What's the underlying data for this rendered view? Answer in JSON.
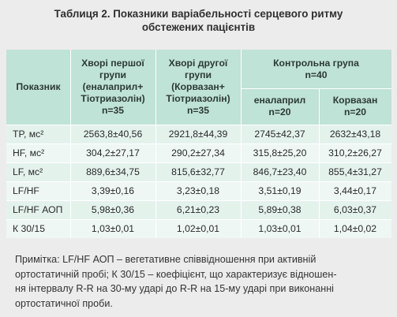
{
  "title": {
    "line1": "Таблиця 2. Показники варіабельності серцевого ритму",
    "line2": "обстежених пацієнтів"
  },
  "table": {
    "header": {
      "indicator": "Показник",
      "group1": [
        "Хворі першої",
        "групи",
        "(еналаприл+",
        "Тіотриазолін)",
        "n=35"
      ],
      "group2": [
        "Хворі другої",
        "групи",
        "(Корвазан+",
        "Тіотриазолін)",
        "n=35"
      ],
      "control": [
        "Контрольна група",
        "n=40"
      ],
      "control_enalapril": [
        "еналаприл",
        "n=20"
      ],
      "control_korvazan": [
        "Корвазан",
        "n=20"
      ]
    },
    "rows": [
      {
        "label": "TP, мс²",
        "g1": "2563,8±40,56",
        "g2": "2921,8±44,39",
        "c1": "2745±42,37",
        "c2": "2632±43,18"
      },
      {
        "label": "HF, мс²",
        "g1": "304,2±27,17",
        "g2": "290,2±27,34",
        "c1": "315,8±25,20",
        "c2": "310,2±26,27"
      },
      {
        "label": "LF, мс²",
        "g1": "889,6±34,75",
        "g2": "815,6±32,77",
        "c1": "846,7±23,40",
        "c2": "855,4±31,27"
      },
      {
        "label": "LF/HF",
        "g1": "3,39±0,16",
        "g2": "3,23±0,18",
        "c1": "3,51±0,19",
        "c2": "3,44±0,17"
      },
      {
        "label": "LF/HF АОП",
        "g1": "5,98±0,36",
        "g2": "6,21±0,23",
        "c1": "5,89±0,38",
        "c2": "6,03±0,37"
      },
      {
        "label": "К 30/15",
        "g1": "1,03±0,01",
        "g2": "1,02±0,01",
        "c1": "1,03±0,01",
        "c2": "1,04±0,02"
      }
    ]
  },
  "note": [
    "Примітка: LF/HF АОП – вегетативне співвідношення при активній",
    "ортостатичній пробі; К 30/15 – коефіцієнт, що характеризує відношен-",
    "ня інтервалу R-R на 30-му ударі до R-R на 15-му ударі при виконанні",
    "ортостатичної проби."
  ]
}
